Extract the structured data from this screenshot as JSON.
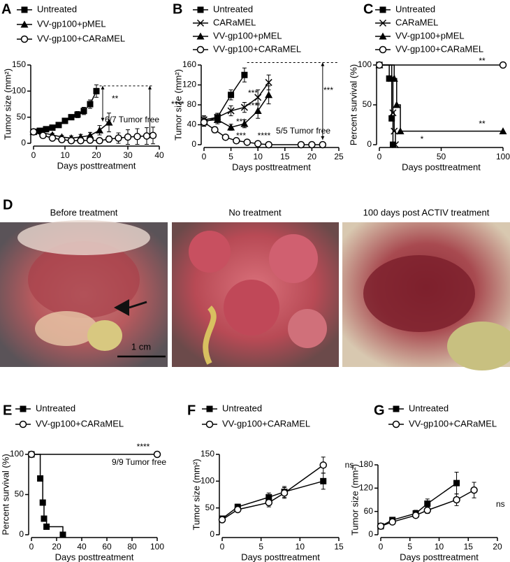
{
  "chart_data": [
    {
      "type": "line",
      "panel": "A",
      "xlabel": "Days posttreatment",
      "ylabel": "Tumor size (mm²)",
      "xlim": [
        0,
        40
      ],
      "xticks": [
        0,
        10,
        20,
        30,
        40
      ],
      "ylim": [
        0,
        150
      ],
      "yticks": [
        0,
        50,
        100,
        150
      ],
      "series": [
        {
          "name": "Untreated",
          "color": "#000",
          "marker": "square",
          "x": [
            0,
            2,
            4,
            6,
            8,
            10,
            12,
            14,
            16,
            18,
            20
          ],
          "values": [
            22,
            24,
            27,
            30,
            35,
            43,
            50,
            55,
            62,
            75,
            100
          ],
          "errors": [
            3,
            3,
            3,
            4,
            4,
            5,
            5,
            6,
            7,
            8,
            12
          ]
        },
        {
          "name": "VV-gp100+pMEL",
          "color": "#000",
          "marker": "triangle",
          "x": [
            0,
            3,
            6,
            9,
            12,
            15,
            18,
            21,
            24
          ],
          "values": [
            22,
            20,
            16,
            12,
            10,
            12,
            15,
            25,
            40
          ],
          "errors": [
            3,
            3,
            3,
            3,
            4,
            5,
            6,
            9,
            18
          ]
        },
        {
          "name": "VV-gp100+CARaMEL",
          "color": "#000",
          "marker": "circle",
          "x": [
            0,
            3,
            6,
            9,
            12,
            15,
            18,
            21,
            24,
            27,
            30,
            33,
            36,
            38
          ],
          "values": [
            22,
            15,
            10,
            7,
            5,
            5,
            6,
            5,
            8,
            10,
            12,
            13,
            14,
            15
          ],
          "errors": [
            3,
            3,
            3,
            3,
            3,
            3,
            4,
            4,
            6,
            10,
            14,
            15,
            16,
            16
          ]
        }
      ],
      "annotations": [
        "**",
        "****",
        "6/7 Tumor free"
      ]
    },
    {
      "type": "line",
      "panel": "B",
      "xlabel": "Days posttreatment",
      "ylabel": "Tumor size (mm²)",
      "xlim": [
        0,
        25
      ],
      "xticks": [
        0,
        5,
        10,
        15,
        20,
        25
      ],
      "ylim": [
        0,
        160
      ],
      "yticks": [
        0,
        40,
        80,
        120,
        160
      ],
      "series": [
        {
          "name": "Untreated",
          "color": "#000",
          "marker": "square",
          "x": [
            0,
            2.5,
            5,
            7.5
          ],
          "values": [
            45,
            55,
            100,
            140
          ],
          "errors": [
            8,
            8,
            10,
            14
          ]
        },
        {
          "name": "CARaMEL",
          "color": "#000",
          "marker": "x",
          "x": [
            0,
            2.5,
            5,
            7.5,
            10,
            12
          ],
          "values": [
            50,
            55,
            68,
            75,
            95,
            125
          ],
          "errors": [
            8,
            8,
            10,
            10,
            15,
            15
          ]
        },
        {
          "name": "VV-gp100+pMEL",
          "color": "#000",
          "marker": "triangle",
          "x": [
            0,
            2.5,
            5,
            7.5,
            10,
            12
          ],
          "values": [
            48,
            50,
            35,
            42,
            68,
            100
          ],
          "errors": [
            8,
            8,
            6,
            8,
            15,
            18
          ]
        },
        {
          "name": "VV-gp100+CARaMEL",
          "color": "#000",
          "marker": "circle",
          "x": [
            0,
            2,
            4,
            6,
            8,
            10,
            12,
            18,
            20,
            22
          ],
          "values": [
            45,
            30,
            15,
            8,
            5,
            2,
            0,
            0,
            0,
            0
          ],
          "errors": [
            8,
            6,
            4,
            3,
            2,
            1,
            0,
            0,
            0,
            0
          ]
        }
      ],
      "annotations": [
        "***",
        "***",
        "***",
        "***",
        "****",
        "***",
        "5/5 Tumor free"
      ]
    },
    {
      "type": "line",
      "step": true,
      "panel": "C",
      "xlabel": "Days posttreatment",
      "ylabel": "Percent survival (%)",
      "xlim": [
        0,
        100
      ],
      "xticks": [
        0,
        50,
        100
      ],
      "ylim": [
        0,
        100
      ],
      "yticks": [
        0,
        50,
        100
      ],
      "series": [
        {
          "name": "Untreated",
          "color": "#000",
          "marker": "square",
          "x": [
            0,
            8,
            10,
            11
          ],
          "values": [
            100,
            83,
            33,
            0
          ]
        },
        {
          "name": "CARaMEL",
          "color": "#000",
          "marker": "x",
          "x": [
            0,
            10,
            11,
            12,
            13
          ],
          "values": [
            100,
            83,
            40,
            17,
            0
          ]
        },
        {
          "name": "VV-gp100+pMEL",
          "color": "#000",
          "marker": "triangle",
          "x": [
            0,
            12,
            14,
            17,
            100
          ],
          "values": [
            100,
            83,
            50,
            17,
            17
          ]
        },
        {
          "name": "VV-gp100+CARaMEL",
          "color": "#000",
          "marker": "circle",
          "x": [
            0,
            100
          ],
          "values": [
            100,
            100
          ]
        }
      ],
      "annotations": [
        "**",
        "**",
        "*"
      ]
    },
    {
      "type": "line",
      "step": true,
      "panel": "E",
      "xlabel": "Days posttreatment",
      "ylabel": "Percent survival (%)",
      "xlim": [
        0,
        100
      ],
      "xticks": [
        0,
        20,
        40,
        60,
        80,
        100
      ],
      "ylim": [
        0,
        100
      ],
      "yticks": [
        0,
        50,
        100
      ],
      "series": [
        {
          "name": "Untreated",
          "color": "#000",
          "marker": "square",
          "x": [
            0,
            7,
            9,
            10,
            12,
            25
          ],
          "values": [
            100,
            70,
            40,
            20,
            10,
            0
          ]
        },
        {
          "name": "VV-gp100+CARaMEL",
          "color": "#000",
          "marker": "circle",
          "x": [
            0,
            100
          ],
          "values": [
            100,
            100
          ]
        }
      ],
      "annotations": [
        "****",
        "9/9 Tumor free"
      ]
    },
    {
      "type": "line",
      "panel": "F",
      "xlabel": "Days posttreatment",
      "ylabel": "Tumor size (mm²)",
      "xlim": [
        0,
        15
      ],
      "xticks": [
        0,
        5,
        10,
        15
      ],
      "ylim": [
        0,
        150
      ],
      "yticks": [
        0,
        50,
        100,
        150
      ],
      "series": [
        {
          "name": "Untreated",
          "color": "#000",
          "marker": "square",
          "x": [
            0,
            2,
            6,
            8,
            13
          ],
          "values": [
            30,
            52,
            70,
            80,
            100
          ],
          "errors": [
            4,
            5,
            8,
            10,
            15
          ]
        },
        {
          "name": "VV-gp100+CARaMEL",
          "color": "#000",
          "marker": "circle",
          "x": [
            0,
            2,
            6,
            8,
            13
          ],
          "values": [
            28,
            47,
            60,
            78,
            130
          ],
          "errors": [
            4,
            5,
            8,
            10,
            15
          ]
        }
      ],
      "annotations": [
        "ns"
      ]
    },
    {
      "type": "line",
      "panel": "G",
      "xlabel": "Days posttreatment",
      "ylabel": "Tumor size (mm²)",
      "xlim": [
        0,
        20
      ],
      "xticks": [
        0,
        5,
        10,
        15,
        20
      ],
      "ylim": [
        0,
        180
      ],
      "yticks": [
        0,
        60,
        120,
        180
      ],
      "series": [
        {
          "name": "Untreated",
          "color": "#000",
          "marker": "square",
          "x": [
            0,
            2,
            6,
            8,
            13
          ],
          "values": [
            22,
            38,
            55,
            80,
            133
          ],
          "errors": [
            3,
            4,
            8,
            12,
            28
          ]
        },
        {
          "name": "VV-gp100+CARaMEL",
          "color": "#000",
          "marker": "circle",
          "x": [
            0,
            2,
            6,
            8,
            13,
            16
          ],
          "values": [
            22,
            33,
            50,
            63,
            90,
            115
          ],
          "errors": [
            3,
            4,
            6,
            8,
            15,
            20
          ]
        }
      ],
      "annotations": [
        "ns"
      ]
    }
  ],
  "photos": {
    "panel": "D",
    "items": [
      {
        "title": "Before treatment",
        "scale": "1 cm"
      },
      {
        "title": "No treatment"
      },
      {
        "title": "100 days post ACTIV treatment"
      }
    ]
  }
}
